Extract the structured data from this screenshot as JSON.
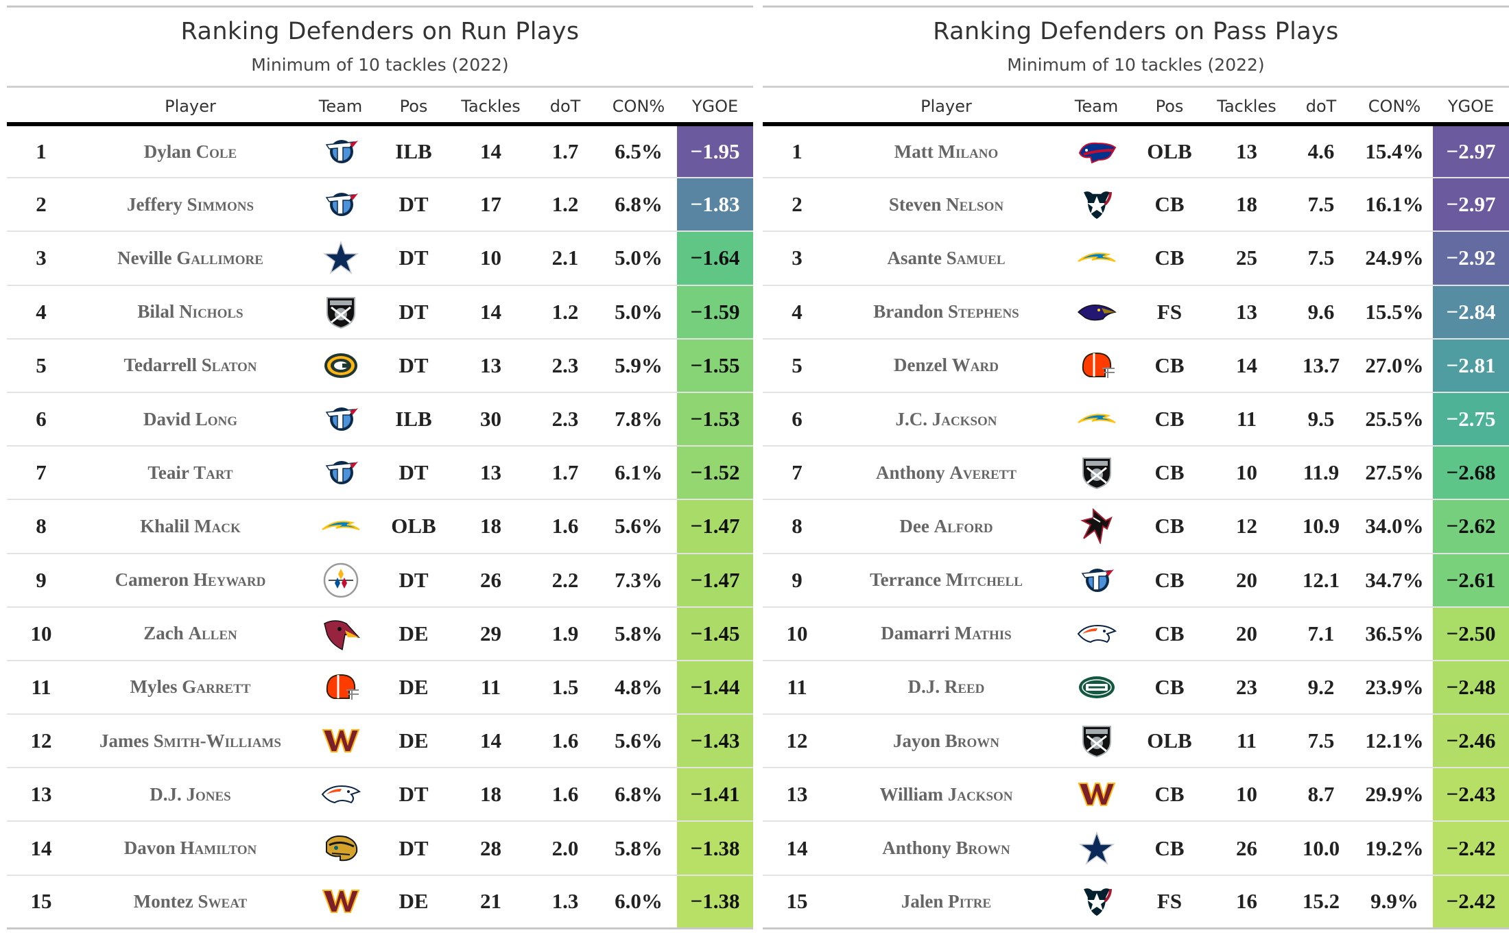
{
  "columns": {
    "player": "Player",
    "team": "Team",
    "pos": "Pos",
    "tackles": "Tackles",
    "dot": "doT",
    "con": "CON%",
    "ygoe": "YGOE"
  },
  "colors": {
    "scale": [
      "#6b5b9e",
      "#5f79a3",
      "#4aa8a0",
      "#55c28a",
      "#7dd27a",
      "#a8db68",
      "#b9e066"
    ]
  },
  "chart_data": [
    {
      "type": "table",
      "title": "Ranking Defenders on Run Plays",
      "subtitle": "Minimum of 10 tackles (2022)",
      "rows": [
        {
          "rank": "1",
          "first": "Dylan",
          "last": "Cole",
          "team_icon": "titans-logo-icon",
          "pos": "ILB",
          "tackles": "14",
          "dot": "1.7",
          "con": "6.5%",
          "ygoe": "−1.95",
          "ygoe_value": -1.95
        },
        {
          "rank": "2",
          "first": "Jeffery",
          "last": "Simmons",
          "team_icon": "titans-logo-icon",
          "pos": "DT",
          "tackles": "17",
          "dot": "1.2",
          "con": "6.8%",
          "ygoe": "−1.83",
          "ygoe_value": -1.83
        },
        {
          "rank": "3",
          "first": "Neville",
          "last": "Gallimore",
          "team_icon": "cowboys-star-icon",
          "pos": "DT",
          "tackles": "10",
          "dot": "2.1",
          "con": "5.0%",
          "ygoe": "−1.64",
          "ygoe_value": -1.64
        },
        {
          "rank": "4",
          "first": "Bilal",
          "last": "Nichols",
          "team_icon": "raiders-shield-icon",
          "pos": "DT",
          "tackles": "14",
          "dot": "1.2",
          "con": "5.0%",
          "ygoe": "−1.59",
          "ygoe_value": -1.59
        },
        {
          "rank": "5",
          "first": "Tedarrell",
          "last": "Slaton",
          "team_icon": "packers-g-icon",
          "pos": "DT",
          "tackles": "13",
          "dot": "2.3",
          "con": "5.9%",
          "ygoe": "−1.55",
          "ygoe_value": -1.55
        },
        {
          "rank": "6",
          "first": "David",
          "last": "Long",
          "team_icon": "titans-logo-icon",
          "pos": "ILB",
          "tackles": "30",
          "dot": "2.3",
          "con": "7.8%",
          "ygoe": "−1.53",
          "ygoe_value": -1.53
        },
        {
          "rank": "7",
          "first": "Teair",
          "last": "Tart",
          "team_icon": "titans-logo-icon",
          "pos": "DT",
          "tackles": "13",
          "dot": "1.7",
          "con": "6.1%",
          "ygoe": "−1.52",
          "ygoe_value": -1.52
        },
        {
          "rank": "8",
          "first": "Khalil",
          "last": "Mack",
          "team_icon": "chargers-bolt-icon",
          "pos": "OLB",
          "tackles": "18",
          "dot": "1.6",
          "con": "5.6%",
          "ygoe": "−1.47",
          "ygoe_value": -1.47
        },
        {
          "rank": "9",
          "first": "Cameron",
          "last": "Heyward",
          "team_icon": "steelers-logo-icon",
          "pos": "DT",
          "tackles": "26",
          "dot": "2.2",
          "con": "7.3%",
          "ygoe": "−1.47",
          "ygoe_value": -1.47
        },
        {
          "rank": "10",
          "first": "Zach",
          "last": "Allen",
          "team_icon": "cardinals-head-icon",
          "pos": "DE",
          "tackles": "29",
          "dot": "1.9",
          "con": "5.8%",
          "ygoe": "−1.45",
          "ygoe_value": -1.45
        },
        {
          "rank": "11",
          "first": "Myles",
          "last": "Garrett",
          "team_icon": "browns-helmet-icon",
          "pos": "DE",
          "tackles": "11",
          "dot": "1.5",
          "con": "4.8%",
          "ygoe": "−1.44",
          "ygoe_value": -1.44
        },
        {
          "rank": "12",
          "first": "James",
          "last": "Smith-Williams",
          "team_icon": "commanders-w-icon",
          "pos": "DE",
          "tackles": "14",
          "dot": "1.6",
          "con": "5.6%",
          "ygoe": "−1.43",
          "ygoe_value": -1.43
        },
        {
          "rank": "13",
          "first": "D.J.",
          "last": "Jones",
          "team_icon": "broncos-horse-icon",
          "pos": "DT",
          "tackles": "18",
          "dot": "1.6",
          "con": "6.8%",
          "ygoe": "−1.41",
          "ygoe_value": -1.41
        },
        {
          "rank": "14",
          "first": "Davon",
          "last": "Hamilton",
          "team_icon": "jaguars-head-icon",
          "pos": "DT",
          "tackles": "28",
          "dot": "2.0",
          "con": "5.8%",
          "ygoe": "−1.38",
          "ygoe_value": -1.38
        },
        {
          "rank": "15",
          "first": "Montez",
          "last": "Sweat",
          "team_icon": "commanders-w-icon",
          "pos": "DE",
          "tackles": "21",
          "dot": "1.3",
          "con": "6.0%",
          "ygoe": "−1.38",
          "ygoe_value": -1.38
        }
      ]
    },
    {
      "type": "table",
      "title": "Ranking Defenders on Pass Plays",
      "subtitle": "Minimum of 10 tackles (2022)",
      "rows": [
        {
          "rank": "1",
          "first": "Matt",
          "last": "Milano",
          "team_icon": "bills-buffalo-icon",
          "pos": "OLB",
          "tackles": "13",
          "dot": "4.6",
          "con": "15.4%",
          "ygoe": "−2.97",
          "ygoe_value": -2.97
        },
        {
          "rank": "2",
          "first": "Steven",
          "last": "Nelson",
          "team_icon": "texans-bull-icon",
          "pos": "CB",
          "tackles": "18",
          "dot": "7.5",
          "con": "16.1%",
          "ygoe": "−2.97",
          "ygoe_value": -2.97
        },
        {
          "rank": "3",
          "first": "Asante",
          "last": "Samuel",
          "team_icon": "chargers-bolt-icon",
          "pos": "CB",
          "tackles": "25",
          "dot": "7.5",
          "con": "24.9%",
          "ygoe": "−2.92",
          "ygoe_value": -2.92
        },
        {
          "rank": "4",
          "first": "Brandon",
          "last": "Stephens",
          "team_icon": "ravens-head-icon",
          "pos": "FS",
          "tackles": "13",
          "dot": "9.6",
          "con": "15.5%",
          "ygoe": "−2.84",
          "ygoe_value": -2.84
        },
        {
          "rank": "5",
          "first": "Denzel",
          "last": "Ward",
          "team_icon": "browns-helmet-icon",
          "pos": "CB",
          "tackles": "14",
          "dot": "13.7",
          "con": "27.0%",
          "ygoe": "−2.81",
          "ygoe_value": -2.81
        },
        {
          "rank": "6",
          "first": "J.C.",
          "last": "Jackson",
          "team_icon": "chargers-bolt-icon",
          "pos": "CB",
          "tackles": "11",
          "dot": "9.5",
          "con": "25.5%",
          "ygoe": "−2.75",
          "ygoe_value": -2.75
        },
        {
          "rank": "7",
          "first": "Anthony",
          "last": "Averett",
          "team_icon": "raiders-shield-icon",
          "pos": "CB",
          "tackles": "10",
          "dot": "11.9",
          "con": "27.5%",
          "ygoe": "−2.68",
          "ygoe_value": -2.68
        },
        {
          "rank": "8",
          "first": "Dee",
          "last": "Alford",
          "team_icon": "falcons-bird-icon",
          "pos": "CB",
          "tackles": "12",
          "dot": "10.9",
          "con": "34.0%",
          "ygoe": "−2.62",
          "ygoe_value": -2.62
        },
        {
          "rank": "9",
          "first": "Terrance",
          "last": "Mitchell",
          "team_icon": "titans-logo-icon",
          "pos": "CB",
          "tackles": "20",
          "dot": "12.1",
          "con": "34.7%",
          "ygoe": "−2.61",
          "ygoe_value": -2.61
        },
        {
          "rank": "10",
          "first": "Damarri",
          "last": "Mathis",
          "team_icon": "broncos-horse-icon",
          "pos": "CB",
          "tackles": "20",
          "dot": "7.1",
          "con": "36.5%",
          "ygoe": "−2.50",
          "ygoe_value": -2.5
        },
        {
          "rank": "11",
          "first": "D.J.",
          "last": "Reed",
          "team_icon": "jets-football-icon",
          "pos": "CB",
          "tackles": "23",
          "dot": "9.2",
          "con": "23.9%",
          "ygoe": "−2.48",
          "ygoe_value": -2.48
        },
        {
          "rank": "12",
          "first": "Jayon",
          "last": "Brown",
          "team_icon": "raiders-shield-icon",
          "pos": "OLB",
          "tackles": "11",
          "dot": "7.5",
          "con": "12.1%",
          "ygoe": "−2.46",
          "ygoe_value": -2.46
        },
        {
          "rank": "13",
          "first": "William",
          "last": "Jackson",
          "team_icon": "commanders-w-icon",
          "pos": "CB",
          "tackles": "10",
          "dot": "8.7",
          "con": "29.9%",
          "ygoe": "−2.43",
          "ygoe_value": -2.43
        },
        {
          "rank": "14",
          "first": "Anthony",
          "last": "Brown",
          "team_icon": "cowboys-star-icon",
          "pos": "CB",
          "tackles": "26",
          "dot": "10.0",
          "con": "19.2%",
          "ygoe": "−2.42",
          "ygoe_value": -2.42
        },
        {
          "rank": "15",
          "first": "Jalen",
          "last": "Pitre",
          "team_icon": "texans-bull-icon",
          "pos": "FS",
          "tackles": "16",
          "dot": "15.2",
          "con": "9.9%",
          "ygoe": "−2.42",
          "ygoe_value": -2.42
        }
      ]
    }
  ]
}
